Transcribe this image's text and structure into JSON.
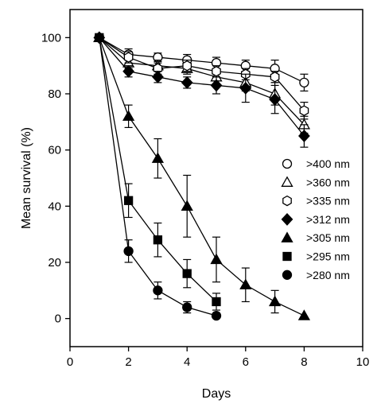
{
  "chart_data": {
    "type": "scatter",
    "title": "",
    "xlabel": "Days",
    "ylabel": "Mean survival (%)",
    "xlim": [
      0,
      10
    ],
    "ylim": [
      -10,
      110
    ],
    "xticks": [
      0,
      2,
      4,
      6,
      8,
      10
    ],
    "yticks": [
      0,
      20,
      40,
      60,
      80,
      100
    ],
    "grid": false,
    "legend_position": "right",
    "series": [
      {
        "name": ">400 nm",
        "marker": "circle-open",
        "x": [
          1,
          2,
          3,
          4,
          5,
          6,
          7,
          8
        ],
        "y": [
          100,
          94,
          93,
          92,
          91,
          90,
          89,
          84
        ],
        "err": [
          0,
          2,
          1.5,
          2,
          2,
          2,
          3,
          3
        ]
      },
      {
        "name": ">360 nm",
        "marker": "triangle-open",
        "x": [
          1,
          2,
          3,
          4,
          5,
          6,
          7,
          8
        ],
        "y": [
          100,
          91,
          90,
          89,
          86,
          84,
          80,
          69
        ],
        "err": [
          0,
          2,
          2,
          2,
          3,
          3,
          4,
          3
        ]
      },
      {
        "name": ">335 nm",
        "marker": "hexagon-open",
        "x": [
          1,
          2,
          3,
          4,
          5,
          6,
          7,
          8
        ],
        "y": [
          100,
          93,
          89,
          90,
          88,
          87,
          86,
          74
        ],
        "err": [
          0,
          2,
          2,
          2,
          2,
          2,
          2,
          3
        ]
      },
      {
        "name": ">312 nm",
        "marker": "diamond-filled",
        "x": [
          1,
          2,
          3,
          4,
          5,
          6,
          7,
          8
        ],
        "y": [
          100,
          88,
          86,
          84,
          83,
          82,
          78,
          65
        ],
        "err": [
          0,
          2,
          2,
          2,
          3,
          5,
          5,
          4
        ]
      },
      {
        "name": ">305 nm",
        "marker": "triangle-filled",
        "x": [
          1,
          2,
          3,
          4,
          5,
          6,
          7,
          8
        ],
        "y": [
          100,
          72,
          57,
          40,
          21,
          12,
          6,
          1
        ],
        "err": [
          0,
          4,
          7,
          11,
          8,
          6,
          4,
          0
        ]
      },
      {
        "name": ">295 nm",
        "marker": "square-filled",
        "x": [
          1,
          2,
          3,
          4,
          5
        ],
        "y": [
          100,
          42,
          28,
          16,
          6
        ],
        "err": [
          0,
          6,
          6,
          5,
          3
        ]
      },
      {
        "name": ">280 nm",
        "marker": "circle-filled",
        "x": [
          1,
          2,
          3,
          4,
          5
        ],
        "y": [
          100,
          24,
          10,
          4,
          1
        ],
        "err": [
          0,
          4,
          3,
          2,
          0
        ]
      }
    ]
  }
}
